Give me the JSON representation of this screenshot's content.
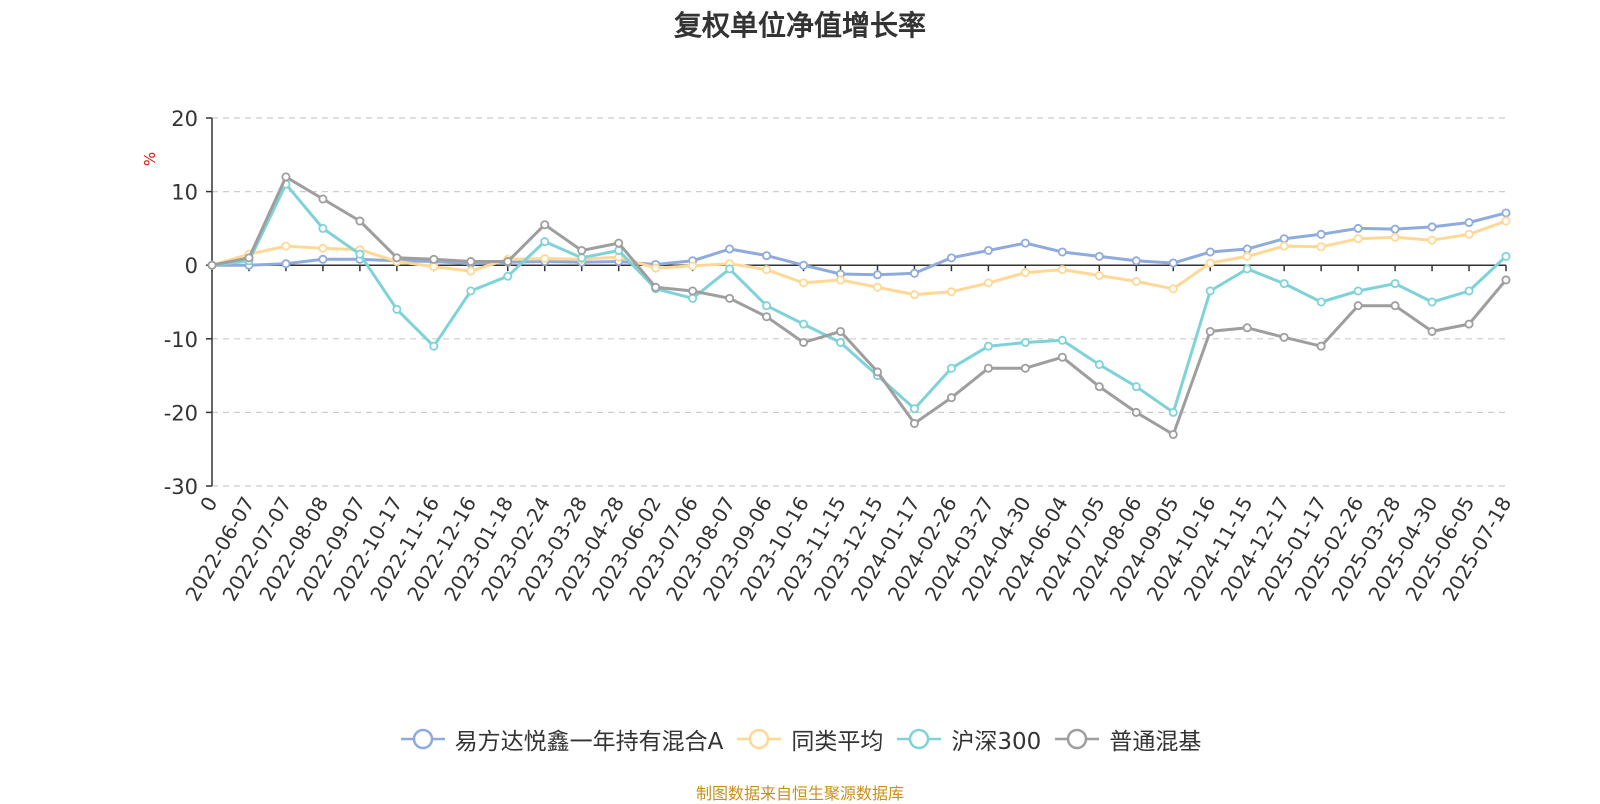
{
  "chart_data": {
    "type": "line",
    "title": "复权单位净值增长率",
    "ylabel": "%",
    "ylim": [
      -30,
      20
    ],
    "yticks": [
      20,
      10,
      0,
      -10,
      -20,
      -30
    ],
    "grid": true,
    "legend_position": "bottom",
    "x_tick_labels": [
      "0",
      "2022-06-07",
      "2022-07-07",
      "2022-08-08",
      "2022-09-07",
      "2022-10-17",
      "2022-11-16",
      "2022-12-16",
      "2023-01-18",
      "2023-02-24",
      "2023-03-28",
      "2023-04-28",
      "2023-06-02",
      "2023-07-06",
      "2023-08-07",
      "2023-09-06",
      "2023-10-16",
      "2023-11-15",
      "2023-12-15",
      "2024-01-17",
      "2024-02-26",
      "2024-03-27",
      "2024-04-30",
      "2024-06-04",
      "2024-07-05",
      "2024-08-06",
      "2024-09-05",
      "2024-10-16",
      "2024-11-15",
      "2024-12-17",
      "2025-01-17",
      "2025-02-26",
      "2025-03-28",
      "2025-04-30",
      "2025-06-05",
      "2025-07-18"
    ],
    "series": [
      {
        "name": "易方达悦鑫一年持有混合A",
        "color": "#8faadc",
        "values": [
          0,
          0,
          0.2,
          0.8,
          0.8,
          0.6,
          0.5,
          0.2,
          0.4,
          0.5,
          0.4,
          0.5,
          0.1,
          0.6,
          2.2,
          1.3,
          0,
          -1.2,
          -1.3,
          -1.1,
          1.0,
          2.0,
          3.0,
          1.8,
          1.2,
          0.6,
          0.3,
          1.8,
          2.2,
          3.6,
          4.2,
          5.0,
          4.9,
          5.2,
          5.8,
          7.1
        ]
      },
      {
        "name": "同类平均",
        "color": "#ffd896",
        "values": [
          0,
          1.5,
          2.6,
          2.3,
          2.1,
          0.5,
          -0.2,
          -0.8,
          0.8,
          0.9,
          0.8,
          1.1,
          -0.4,
          -0.1,
          0.2,
          -0.6,
          -2.4,
          -2.0,
          -3.0,
          -4.0,
          -3.6,
          -2.4,
          -1.0,
          -0.6,
          -1.4,
          -2.2,
          -3.2,
          0.3,
          1.2,
          2.6,
          2.5,
          3.6,
          3.8,
          3.4,
          4.2,
          6.0
        ]
      },
      {
        "name": "沪深300",
        "color": "#7fd3d8",
        "values": [
          0,
          0.6,
          11.0,
          5.0,
          1.5,
          -6.0,
          -11.0,
          -3.5,
          -1.5,
          3.2,
          1.0,
          2.0,
          -3.2,
          -4.5,
          -0.5,
          -5.5,
          -8.0,
          -10.5,
          -15.0,
          -19.5,
          -14.0,
          -11.0,
          -10.5,
          -10.2,
          -13.5,
          -16.5,
          -20.0,
          -3.5,
          -0.5,
          -2.5,
          -5.0,
          -3.5,
          -2.5,
          -5.0,
          -3.5,
          1.2
        ]
      },
      {
        "name": "普通混基",
        "color": "#9e9e9e",
        "values": [
          0,
          1.0,
          12.0,
          9.0,
          6.0,
          1.0,
          0.8,
          0.5,
          0.5,
          5.5,
          2.0,
          3.0,
          -3.0,
          -3.5,
          -4.5,
          -7.0,
          -10.5,
          -9.0,
          -14.5,
          -21.5,
          -18.0,
          -14.0,
          -14.0,
          -12.5,
          -16.5,
          -20.0,
          -23.0,
          -9.0,
          -8.5,
          -9.8,
          -11.0,
          -5.5,
          -5.5,
          -9.0,
          -8.0,
          -2.0
        ]
      }
    ]
  },
  "footer": {
    "source": "制图数据来自恒生聚源数据库"
  }
}
